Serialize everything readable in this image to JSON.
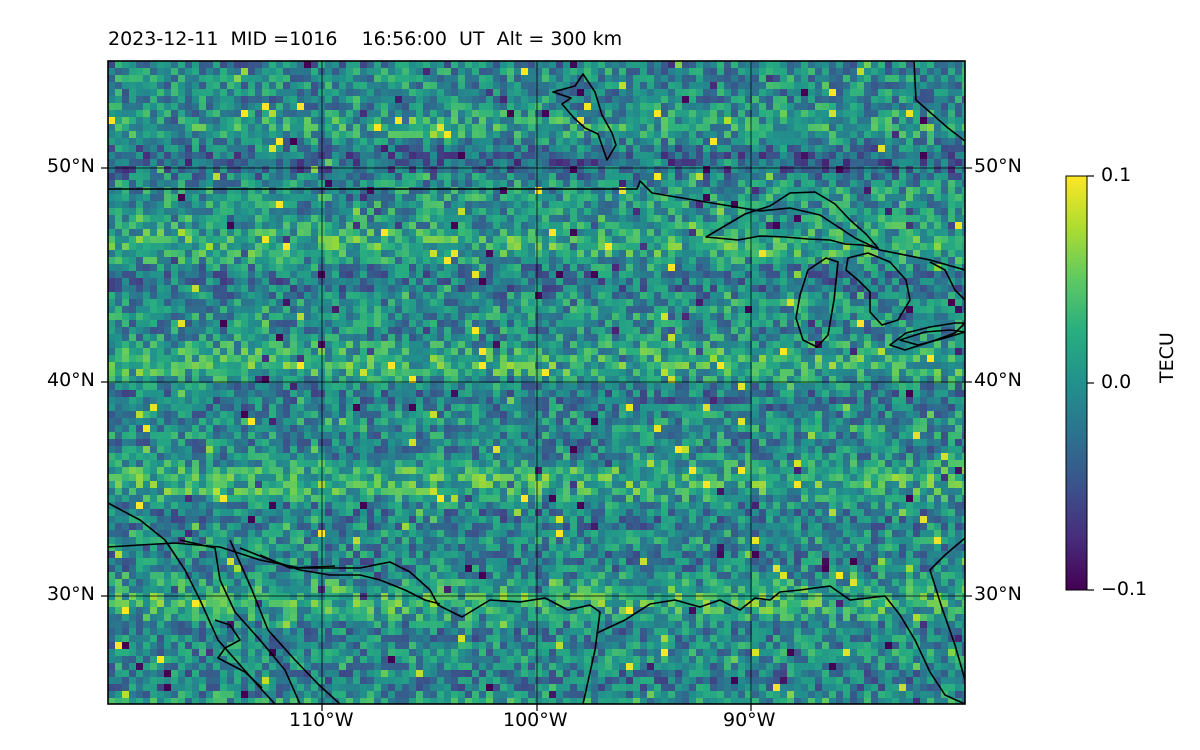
{
  "title": "2023-12-11  MID =1016    16:56:00  UT  Alt = 300 km",
  "map": {
    "lat_range": [
      25,
      55
    ],
    "lon_range": [
      -120,
      -80
    ],
    "grid_lats": [
      50,
      40,
      30
    ],
    "grid_lons": [
      -110,
      -100,
      -90
    ],
    "lat_labels": [
      "50°N",
      "40°N",
      "30°N"
    ],
    "lon_labels": [
      "110°W",
      "100°W",
      "90°W"
    ],
    "features": [
      "US-Canada border",
      "Gulf Coast",
      "Great Lakes",
      "Mexico coastline"
    ]
  },
  "colorbar": {
    "label": "TECU",
    "min": -0.1,
    "max": 0.1,
    "ticks": [
      "0.1",
      "0.0",
      "−0.1"
    ],
    "colormap": "viridis"
  }
}
